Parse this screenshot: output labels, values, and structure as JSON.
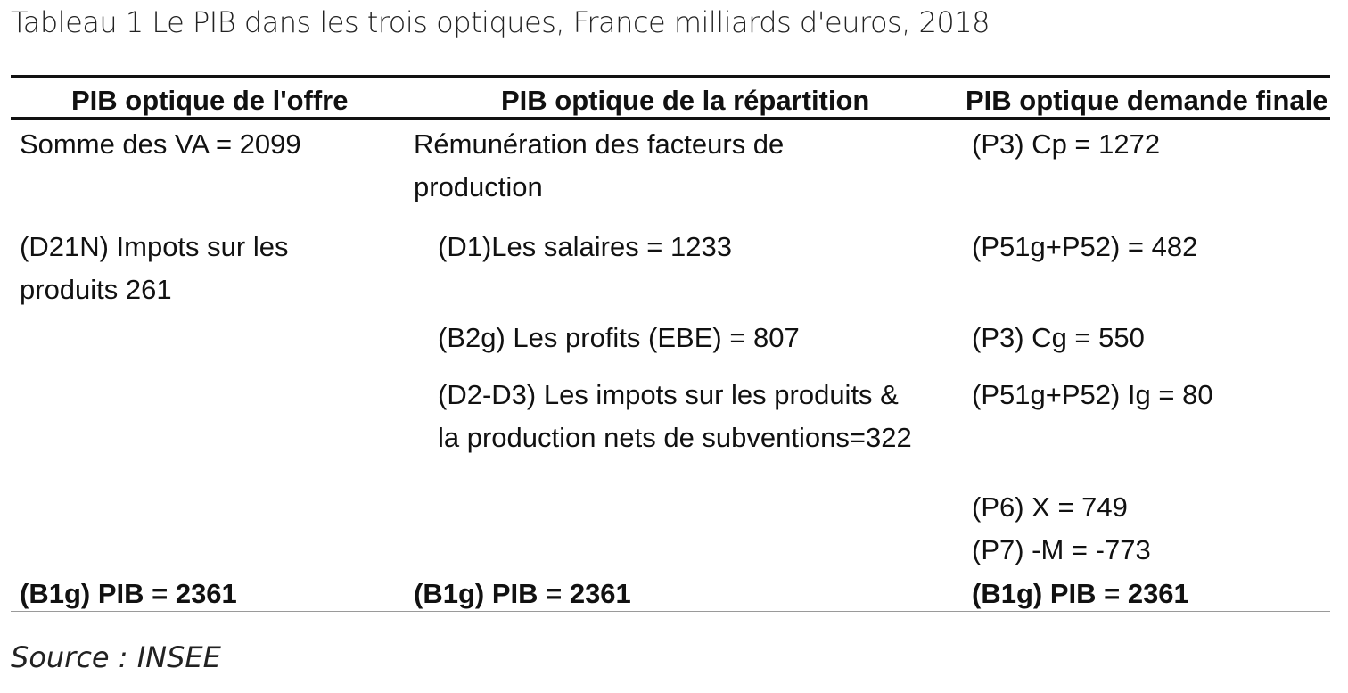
{
  "caption": "Tableau 1 Le PIB dans les trois optiques, France milliards d'euros, 2018",
  "headers": {
    "offre": "PIB optique de l'offre",
    "repartition": "PIB optique de la répartition",
    "demande": "PIB optique demande finale"
  },
  "offre": {
    "somme_va": "Somme des VA = 2099",
    "impots_line1": "(D21N) Impots sur les",
    "impots_line2": "produits  261",
    "total": "(B1g) PIB = 2361"
  },
  "repartition": {
    "remuneration_line1": "Rémunération des facteurs de",
    "remuneration_line2": "production",
    "salaires": "(D1)Les salaires = 1233",
    "profits": "(B2g) Les profits (EBE) = 807",
    "impots_line1": "(D2-D3) Les impots sur les produits &",
    "impots_line2": "la production nets de subventions=322",
    "total": "(B1g) PIB = 2361"
  },
  "demande": {
    "cp": "(P3) Cp  = 1272",
    "fbcf": "(P51g+P52) = 482",
    "cg": "(P3) Cg = 550",
    "ig": "(P51g+P52) Ig = 80",
    "x": "(P6) X = 749",
    "m": "(P7) -M = -773",
    "total": "(B1g) PIB = 2361"
  },
  "source": "Source : INSEE"
}
